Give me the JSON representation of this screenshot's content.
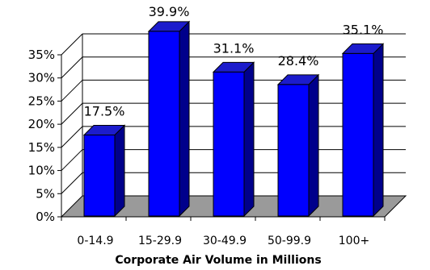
{
  "chart_data": {
    "type": "bar",
    "title": "",
    "xlabel": "Corporate Air Volume in Millions",
    "ylabel": "",
    "categories": [
      "0-14.9",
      "15-29.9",
      "30-49.9",
      "50-99.9",
      "100+"
    ],
    "values": [
      17.5,
      39.9,
      31.1,
      28.4,
      35.1
    ],
    "data_labels": [
      "17.5%",
      "39.9%",
      "31.1%",
      "28.4%",
      "35.1%"
    ],
    "y_ticks": [
      "0%",
      "5%",
      "10%",
      "15%",
      "20%",
      "25%",
      "30%",
      "35%"
    ],
    "ylim": [
      0,
      35
    ],
    "grid": true,
    "three_d": true,
    "legend": "none",
    "colors": {
      "bar_front": "#0000ff",
      "bar_side": "#00008b",
      "bar_top": "#1c1ccc",
      "floor": "#9a9a9a",
      "gridline": "#000000"
    }
  }
}
